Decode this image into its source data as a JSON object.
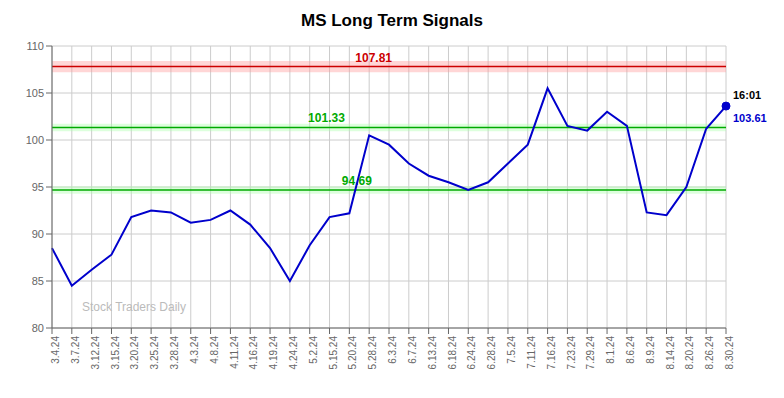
{
  "chart_data": {
    "type": "line",
    "title": "MS Long Term Signals",
    "categories": [
      "3.4.24",
      "3.7.24",
      "3.12.24",
      "3.15.24",
      "3.20.24",
      "3.25.24",
      "3.28.24",
      "4.3.24",
      "4.8.24",
      "4.11.24",
      "4.16.24",
      "4.19.24",
      "4.24.24",
      "5.2.24",
      "5.15.24",
      "5.20.24",
      "5.28.24",
      "6.3.24",
      "6.7.24",
      "6.13.24",
      "6.18.24",
      "6.24.24",
      "6.28.24",
      "7.5.24",
      "7.11.24",
      "7.16.24",
      "7.23.24",
      "7.29.24",
      "8.1.24",
      "8.6.24",
      "8.9.24",
      "8.14.24",
      "8.20.24",
      "8.26.24",
      "8.30.24"
    ],
    "values": [
      88.5,
      84.5,
      86.2,
      87.8,
      91.8,
      92.5,
      92.3,
      91.2,
      91.5,
      92.5,
      91.0,
      88.5,
      85.0,
      88.8,
      91.8,
      92.2,
      100.5,
      99.5,
      97.5,
      96.2,
      95.5,
      94.7,
      95.5,
      97.5,
      99.5,
      105.5,
      101.5,
      101.0,
      103.0,
      101.5,
      92.3,
      92.0,
      95.0,
      101.2,
      103.61
    ],
    "color": "#0000cc",
    "ylim": [
      80,
      110
    ],
    "yticks": [
      80,
      85,
      90,
      95,
      100,
      105,
      110
    ],
    "grid": true,
    "reference_lines": [
      {
        "value": 107.81,
        "label": "107.81",
        "color": "#cc0000",
        "band": [
          107.21,
          108.41
        ],
        "band_color": "#ff9999"
      },
      {
        "value": 101.33,
        "label": "101.33",
        "color": "#00aa00",
        "band": [
          100.93,
          101.73
        ],
        "band_color": "#aaffaa"
      },
      {
        "value": 94.69,
        "label": "94.69",
        "color": "#00aa00",
        "band": [
          94.29,
          95.09
        ],
        "band_color": "#aaffaa"
      }
    ],
    "last_point": {
      "time_label": "16:01",
      "time_color": "#000000",
      "value_label": "103.61",
      "value_color": "#0000cc"
    },
    "watermark": "Stock Traders Daily",
    "watermark_color": "#bbbbbb"
  }
}
